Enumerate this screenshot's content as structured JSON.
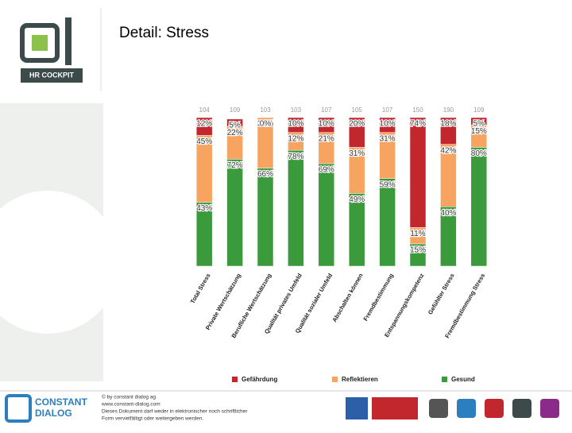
{
  "logo": {
    "text": "HR COCKPIT"
  },
  "header": {
    "title": "Detail: Stress"
  },
  "chart_data": {
    "type": "bar",
    "stacked": true,
    "categories": [
      "Total Stress",
      "Private Wertschätzung",
      "Berufliche Wertschätzung",
      "Qualität privates Umfeld",
      "Qualität sozialer Umfeld",
      "Abschalten können",
      "Fremdbestimmung",
      "Entspannungskompetenz",
      "Gefühlter Stress",
      "Fremdbestimmung Stress"
    ],
    "counts": [
      "104",
      "109",
      "103",
      "103",
      "107",
      "105",
      "107",
      "150",
      "190",
      "109"
    ],
    "series": [
      {
        "name": "Gesund",
        "color": "#3b9a3b",
        "values": [
          43,
          72,
          66,
          78,
          69,
          49,
          59,
          15,
          40,
          80
        ],
        "value_labels": [
          "43%",
          "72%",
          "66%",
          "78%",
          "69%",
          "49%",
          "59%",
          "15%",
          "40%",
          "80%"
        ]
      },
      {
        "name": "Reflektieren",
        "color": "#f6a460",
        "values": [
          45,
          22,
          34,
          12,
          21,
          31,
          31,
          11,
          42,
          15
        ],
        "value_labels": [
          "45%",
          "22%",
          "34%",
          "12%",
          "21%",
          "31%",
          "31%",
          "11%",
          "42%",
          "15%"
        ]
      },
      {
        "name": "Gefährdung",
        "color": "#c1272d",
        "values": [
          12,
          5,
          0,
          10,
          10,
          20,
          10,
          74,
          18,
          5
        ],
        "value_labels": [
          "12%",
          "5%",
          "0%",
          "10%",
          "10%",
          "20%",
          "10%",
          "74%",
          "18%",
          "5%"
        ]
      }
    ],
    "ylim": [
      0,
      100
    ]
  },
  "footer": {
    "brand": [
      "CONSTANT",
      "DIALOG"
    ],
    "lines": [
      "© by constant dialog ag",
      "www.constant-dialog.com",
      "Dieses Dokument darf weder in elektronischer noch schriftlicher",
      "Form vervielfältigt oder weitergeben werden."
    ]
  }
}
